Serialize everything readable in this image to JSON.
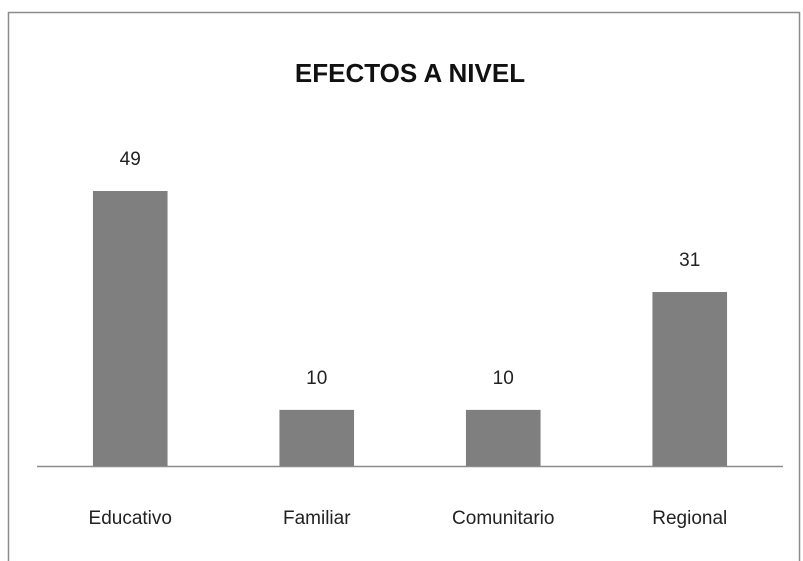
{
  "chart_data": {
    "type": "bar",
    "title": "EFECTOS A NIVEL",
    "categories": [
      "Educativo",
      "Familiar",
      "Comunitario",
      "Regional"
    ],
    "values": [
      49,
      10,
      10,
      31
    ],
    "color": "#7f7f7f"
  }
}
